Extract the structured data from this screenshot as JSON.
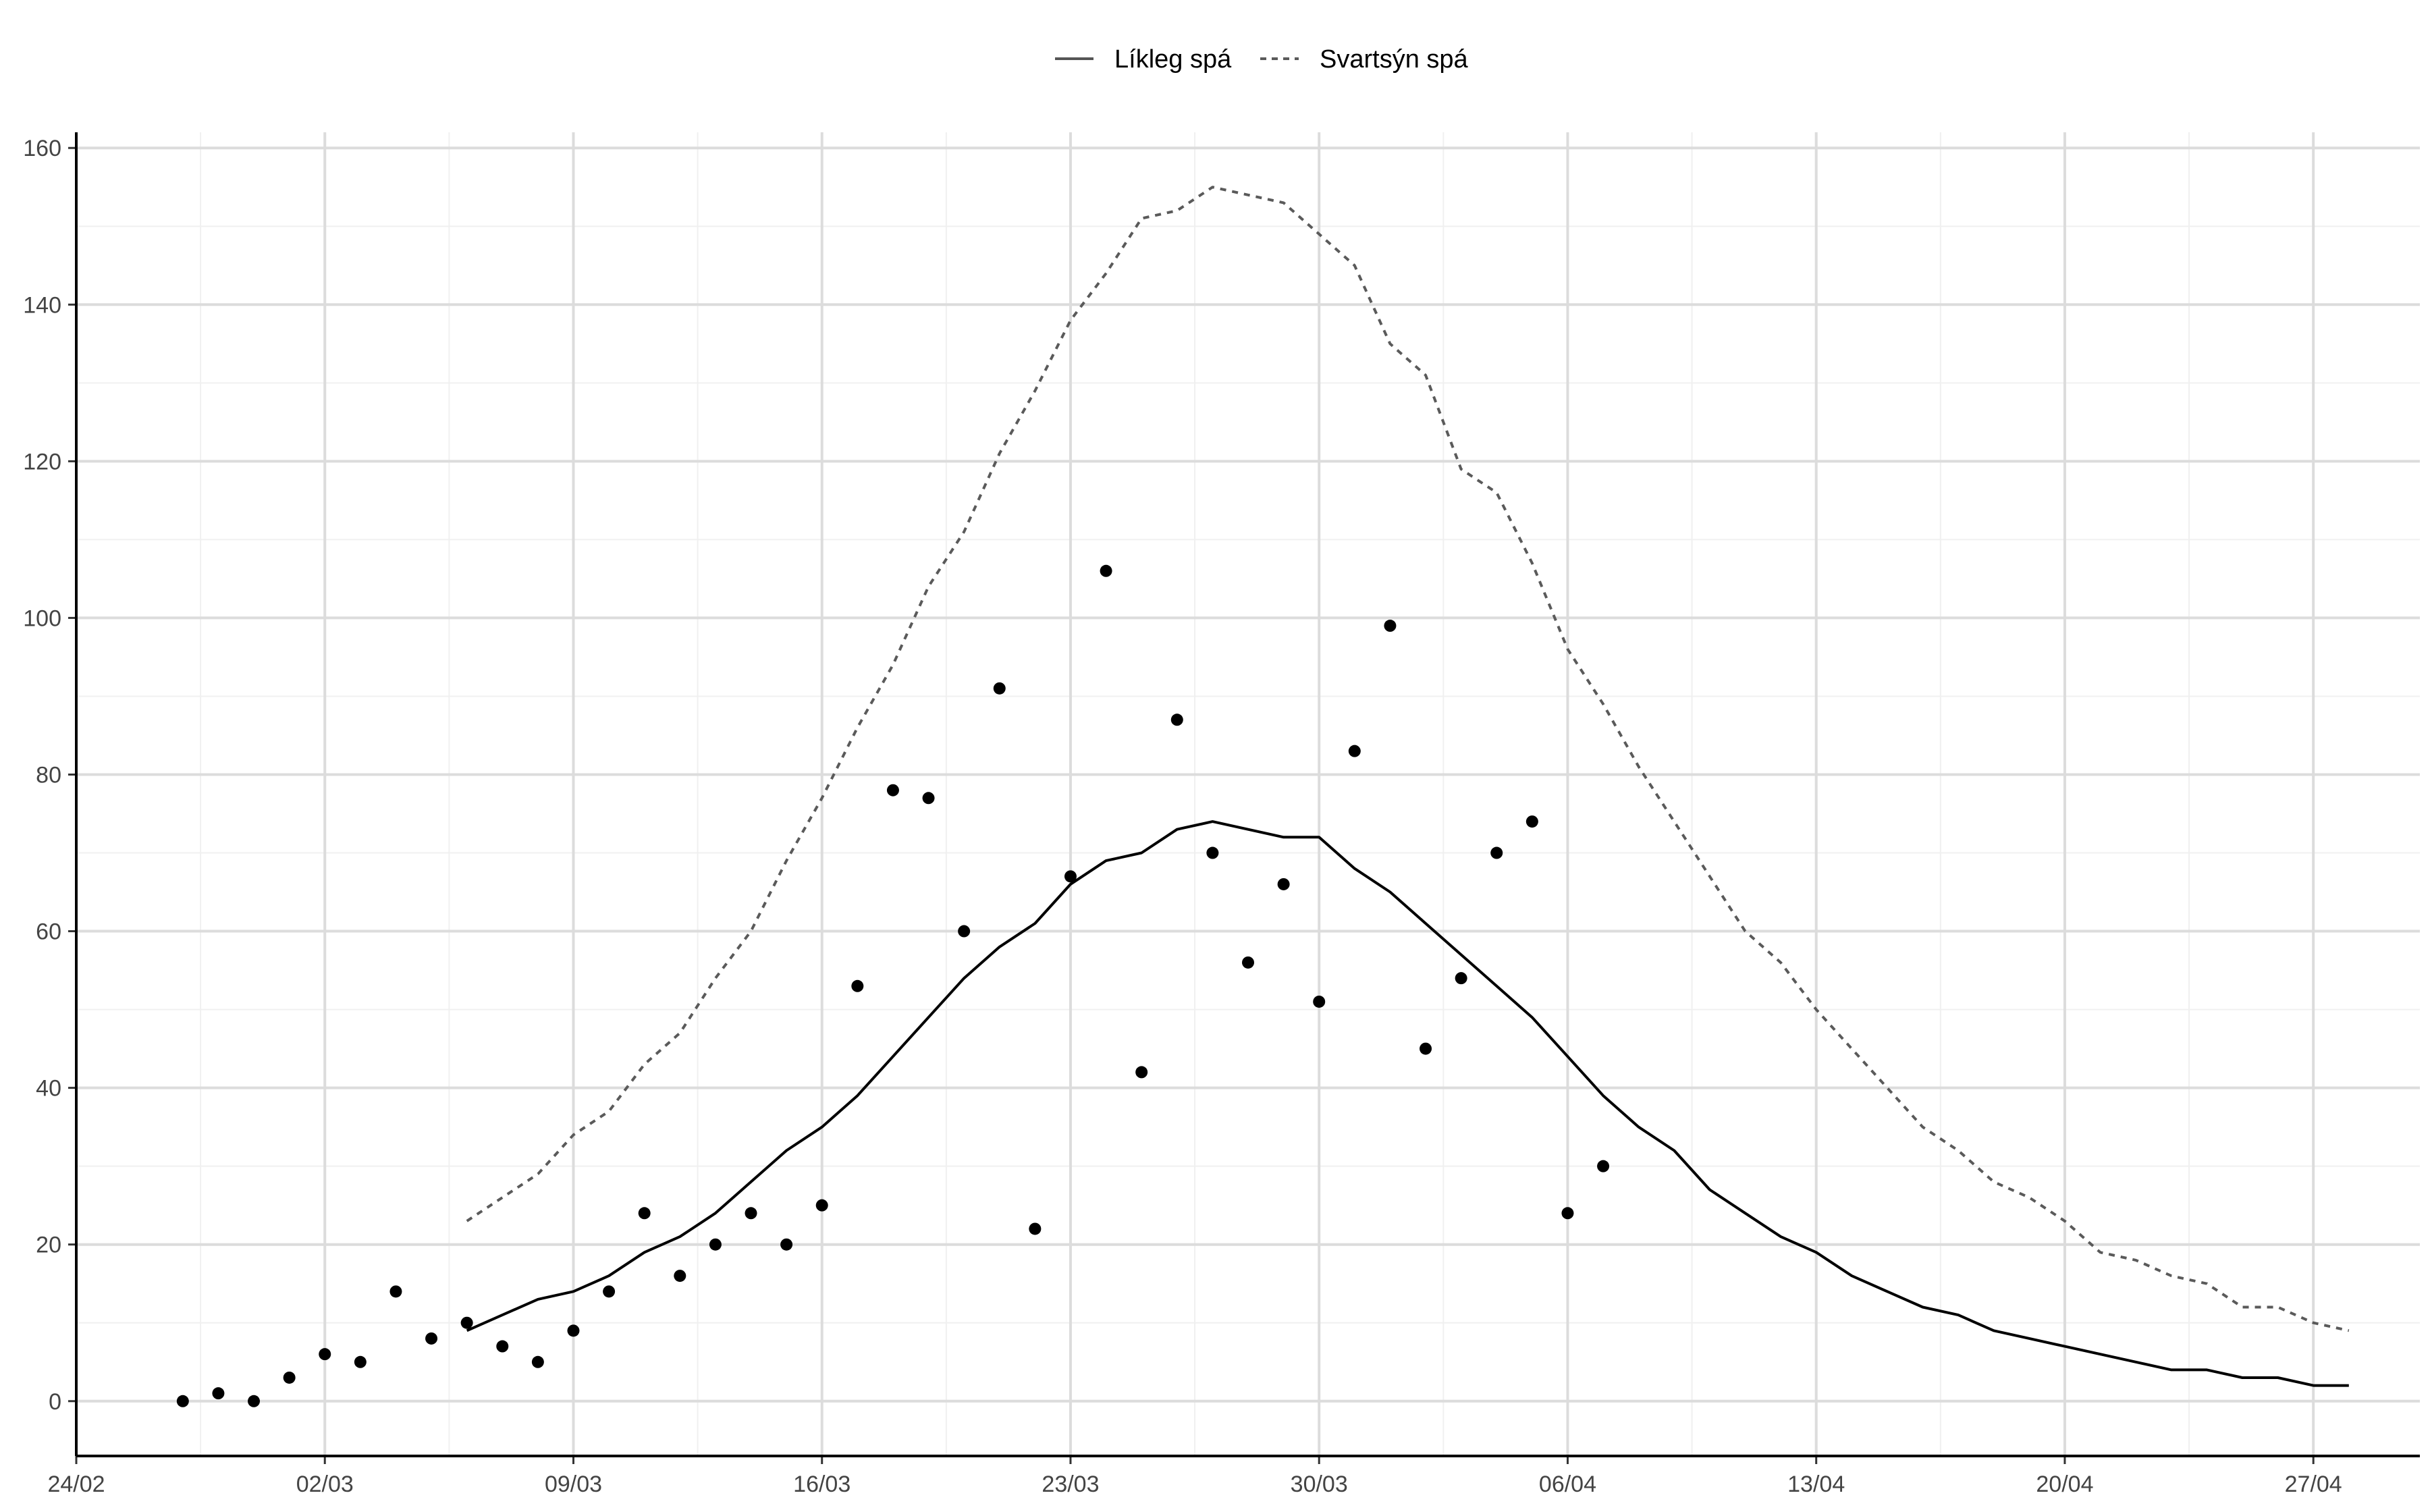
{
  "chart_data": {
    "type": "line",
    "title": "",
    "xlabel": "",
    "ylabel": "",
    "x_axis": {
      "start": "2020-02-24",
      "end": "2020-04-30",
      "major_ticks": [
        "2020-02-24",
        "2020-03-02",
        "2020-03-09",
        "2020-03-16",
        "2020-03-23",
        "2020-03-30",
        "2020-04-06",
        "2020-04-13",
        "2020-04-20",
        "2020-04-27"
      ],
      "tick_labels": [
        "24/02",
        "02/03",
        "09/03",
        "16/03",
        "23/03",
        "30/03",
        "06/04",
        "13/04",
        "20/04",
        "27/04"
      ]
    },
    "y_axis": {
      "ylim": [
        -7,
        162
      ],
      "ticks": [
        0,
        20,
        40,
        60,
        80,
        100,
        120,
        140,
        160
      ],
      "tick_labels": [
        "0",
        "20",
        "40",
        "60",
        "80",
        "100",
        "120",
        "140",
        "160"
      ]
    },
    "grid": true,
    "legend": {
      "position": "top",
      "entries": [
        {
          "label": "Líkleg spá",
          "linetype": "solid",
          "color": "#000000"
        },
        {
          "label": "Svartsýn spá",
          "linetype": "dashed",
          "color": "#555555"
        }
      ]
    },
    "series": [
      {
        "name": "Líkleg spá",
        "kind": "line",
        "linetype": "solid",
        "start_date": "2020-03-06",
        "values": [
          9,
          11,
          13,
          14,
          16,
          19,
          21,
          24,
          28,
          32,
          35,
          39,
          44,
          49,
          54,
          58,
          61,
          66,
          69,
          70,
          73,
          74,
          73,
          72,
          72,
          68,
          65,
          61,
          57,
          53,
          49,
          44,
          39,
          35,
          32,
          27,
          24,
          21,
          19,
          16,
          14,
          12,
          11,
          9,
          8,
          7,
          6,
          5,
          4,
          4,
          3,
          3,
          2,
          2
        ]
      },
      {
        "name": "Svartsýn spá",
        "kind": "line",
        "linetype": "dashed",
        "start_date": "2020-03-06",
        "values": [
          23,
          26,
          29,
          34,
          37,
          43,
          47,
          54,
          60,
          69,
          77,
          86,
          94,
          104,
          111,
          121,
          129,
          138,
          144,
          151,
          152,
          155,
          154,
          153,
          149,
          145,
          135,
          131,
          119,
          116,
          107,
          96,
          89,
          81,
          74,
          67,
          60,
          56,
          50,
          45,
          40,
          35,
          32,
          28,
          26,
          23,
          19,
          18,
          16,
          15,
          12,
          12,
          10,
          9
        ]
      },
      {
        "name": "",
        "kind": "points",
        "start_date": "2020-02-27",
        "values": [
          0,
          1,
          0,
          3,
          6,
          5,
          14,
          8,
          10,
          7,
          5,
          9,
          14,
          24,
          16,
          20,
          24,
          20,
          25,
          53,
          78,
          77,
          60,
          91,
          22,
          67,
          106,
          42,
          87,
          70,
          56,
          66,
          51,
          83,
          99,
          45,
          54,
          70,
          74,
          24,
          30
        ]
      }
    ]
  }
}
